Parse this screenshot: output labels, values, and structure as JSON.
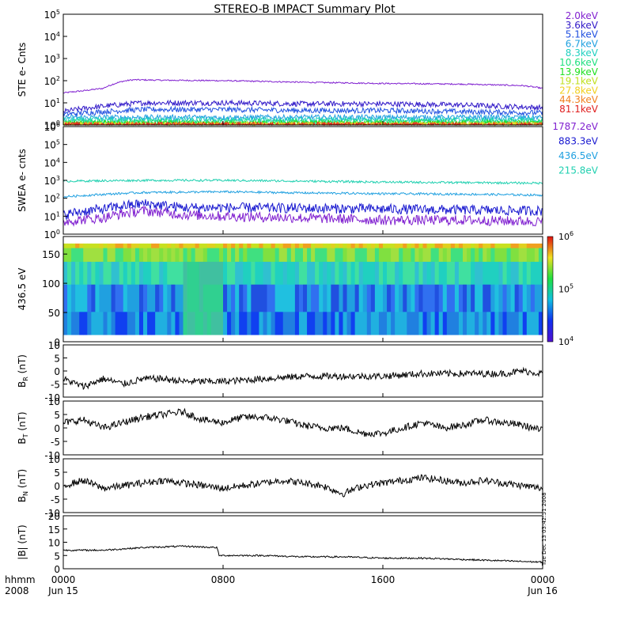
{
  "title": "STEREO-B IMPACT Summary Plot",
  "stamp": "Tue Dec 13 03:42:51 2008",
  "chart_data": {
    "type": "line",
    "title": "STEREO-B IMPACT Summary Plot",
    "x_axis": {
      "ticks": [
        "0000",
        "0800",
        "1600",
        "0000"
      ],
      "hours": [
        0,
        8,
        16,
        24
      ],
      "date_labels": [
        "Jun 15",
        "Jun 16"
      ],
      "unit_label": "hhmm",
      "year_label": "2008",
      "range": [
        0,
        24
      ]
    },
    "panels": [
      {
        "id": "ste",
        "ylabel": "STE e- Cnts",
        "scale": "log",
        "ylim": [
          1,
          100000
        ],
        "tick_labels": [
          "10^0",
          "10^1",
          "10^2",
          "10^3",
          "10^4",
          "10^5"
        ],
        "series": [
          {
            "name": "2.0keV",
            "color": "#8020d0",
            "t": [
              0,
              1,
              2,
              3,
              3.5,
              5,
              8,
              12,
              16,
              20,
              23,
              24
            ],
            "v": [
              28,
              35,
              45,
              95,
              110,
              105,
              100,
              85,
              75,
              70,
              60,
              45
            ]
          },
          {
            "name": "3.6keV",
            "color": "#3018c8",
            "t": [
              0,
              4,
              8,
              12,
              16,
              20,
              24
            ],
            "v": [
              4,
              10,
              10,
              9,
              9,
              8,
              6
            ]
          },
          {
            "name": "5.1keV",
            "color": "#2050e0",
            "t": [
              0,
              4,
              8,
              12,
              16,
              20,
              24
            ],
            "v": [
              3,
              5,
              5,
              4.5,
              4.5,
              4,
              3.5
            ]
          },
          {
            "name": "6.7keV",
            "color": "#20a0e0",
            "t": [
              0,
              24
            ],
            "v": [
              2.2,
              2.2
            ]
          },
          {
            "name": "8.3keV",
            "color": "#20d0c0",
            "t": [
              0,
              24
            ],
            "v": [
              1.7,
              1.7
            ]
          },
          {
            "name": "10.6keV",
            "color": "#20e080",
            "t": [
              0,
              24
            ],
            "v": [
              1.4,
              1.4
            ]
          },
          {
            "name": "13.9keV",
            "color": "#20e020",
            "t": [
              0,
              24
            ],
            "v": [
              1.2,
              1.2
            ]
          },
          {
            "name": "19.1keV",
            "color": "#c0e020",
            "t": [
              0,
              24
            ],
            "v": [
              1.05,
              1.05
            ]
          },
          {
            "name": "27.8keV",
            "color": "#f0d020",
            "t": [
              0,
              24
            ],
            "v": [
              1.02,
              1.02
            ]
          },
          {
            "name": "44.3keV",
            "color": "#f08020",
            "t": [
              0,
              24
            ],
            "v": [
              1.01,
              1.01
            ]
          },
          {
            "name": "81.1keV",
            "color": "#e02020",
            "t": [
              0,
              24
            ],
            "v": [
              1.0,
              1.0
            ]
          }
        ]
      },
      {
        "id": "swea",
        "ylabel": "SWEA e- cnts",
        "scale": "log",
        "ylim": [
          1,
          1000000
        ],
        "tick_labels": [
          "10^0",
          "10^1",
          "10^2",
          "10^3",
          "10^4",
          "10^5",
          "10^6"
        ],
        "series": [
          {
            "name": "1787.2eV",
            "color": "#8020d0",
            "t": [
              0,
              2,
              4,
              6,
              8,
              12,
              16,
              20,
              24
            ],
            "v": [
              5,
              8,
              20,
              12,
              10,
              8,
              6,
              6,
              5
            ]
          },
          {
            "name": "883.3eV",
            "color": "#1818d0",
            "t": [
              0,
              2,
              4,
              6,
              8,
              12,
              16,
              20,
              24
            ],
            "v": [
              12,
              25,
              50,
              30,
              30,
              28,
              25,
              22,
              20
            ]
          },
          {
            "name": "436.5eV",
            "color": "#20a0e0",
            "t": [
              0,
              4,
              8,
              12,
              16,
              20,
              24
            ],
            "v": [
              120,
              210,
              230,
              200,
              180,
              170,
              150
            ]
          },
          {
            "name": "215.8eV",
            "color": "#20d0b0",
            "t": [
              0,
              4,
              8,
              12,
              16,
              20,
              24
            ],
            "v": [
              900,
              1000,
              1000,
              900,
              800,
              750,
              700
            ]
          }
        ]
      },
      {
        "id": "pad",
        "ylabel": "436.5 eV",
        "type": "heatmap",
        "ylim": [
          0,
          180
        ],
        "y_ticks": [
          0,
          50,
          100,
          150
        ],
        "colorbar": {
          "scale": "log",
          "range": [
            10000,
            1000000
          ],
          "tick_labels": [
            "10^4",
            "10^5",
            "10^6"
          ]
        }
      },
      {
        "id": "br",
        "ylabel": "B_R (nT)",
        "ylim": [
          -10,
          10
        ],
        "y_ticks": [
          -10,
          -5,
          0,
          5,
          10
        ],
        "series": [
          {
            "name": "B_R",
            "color": "#000000",
            "t": [
              0,
              1,
              2,
              3,
              4,
              5,
              6,
              8,
              10,
              12,
              14,
              16,
              18,
              20,
              22,
              23,
              24
            ],
            "v": [
              -3,
              -6,
              -3,
              -5,
              -3,
              -3,
              -4,
              -4,
              -3,
              -2,
              -2,
              -2,
              -1,
              -1,
              -1,
              0,
              -1
            ]
          }
        ]
      },
      {
        "id": "bt",
        "ylabel": "B_T (nT)",
        "ylim": [
          -10,
          10
        ],
        "y_ticks": [
          -10,
          -5,
          0,
          5,
          10
        ],
        "series": [
          {
            "name": "B_T",
            "color": "#000000",
            "t": [
              0,
              1,
              2,
              3,
              4,
              5,
              6,
              7,
              8,
              9,
              10,
              11,
              12,
              13,
              14,
              15,
              16,
              17,
              18,
              19,
              20,
              21,
              22,
              23,
              24
            ],
            "v": [
              2,
              3,
              0,
              2,
              4,
              5,
              6,
              3,
              2,
              4,
              4,
              3,
              1,
              0,
              0,
              -2,
              -2,
              0,
              2,
              0,
              1,
              3,
              2,
              1,
              -1
            ]
          }
        ]
      },
      {
        "id": "bn",
        "ylabel": "B_N (nT)",
        "ylim": [
          -10,
          10
        ],
        "y_ticks": [
          -10,
          -5,
          0,
          5,
          10
        ],
        "series": [
          {
            "name": "B_N",
            "color": "#000000",
            "t": [
              0,
              1,
              2,
              3,
              4,
              5,
              6,
              7,
              8,
              9,
              10,
              11,
              12,
              13,
              14,
              15,
              16,
              17,
              18,
              19,
              20,
              21,
              22,
              23,
              24
            ],
            "v": [
              0,
              2,
              -1,
              0,
              1,
              2,
              1,
              0,
              -1,
              0,
              1,
              2,
              1,
              0,
              -3,
              0,
              1,
              2,
              3,
              2,
              1,
              2,
              1,
              0,
              -1
            ]
          }
        ]
      },
      {
        "id": "bmag",
        "ylabel": "|B| (nT)",
        "ylim": [
          0,
          20
        ],
        "y_ticks": [
          0,
          5,
          10,
          15,
          20
        ],
        "series": [
          {
            "name": "|B|",
            "color": "#000000",
            "t": [
              0,
              2,
              4,
              6,
              7.7,
              7.8,
              10,
              12,
              14,
              16,
              18,
              20,
              22,
              24
            ],
            "v": [
              7,
              7,
              8,
              8.5,
              8,
              5,
              5,
              4.5,
              4.5,
              4,
              4,
              3.5,
              3,
              2.5
            ]
          }
        ]
      }
    ]
  }
}
